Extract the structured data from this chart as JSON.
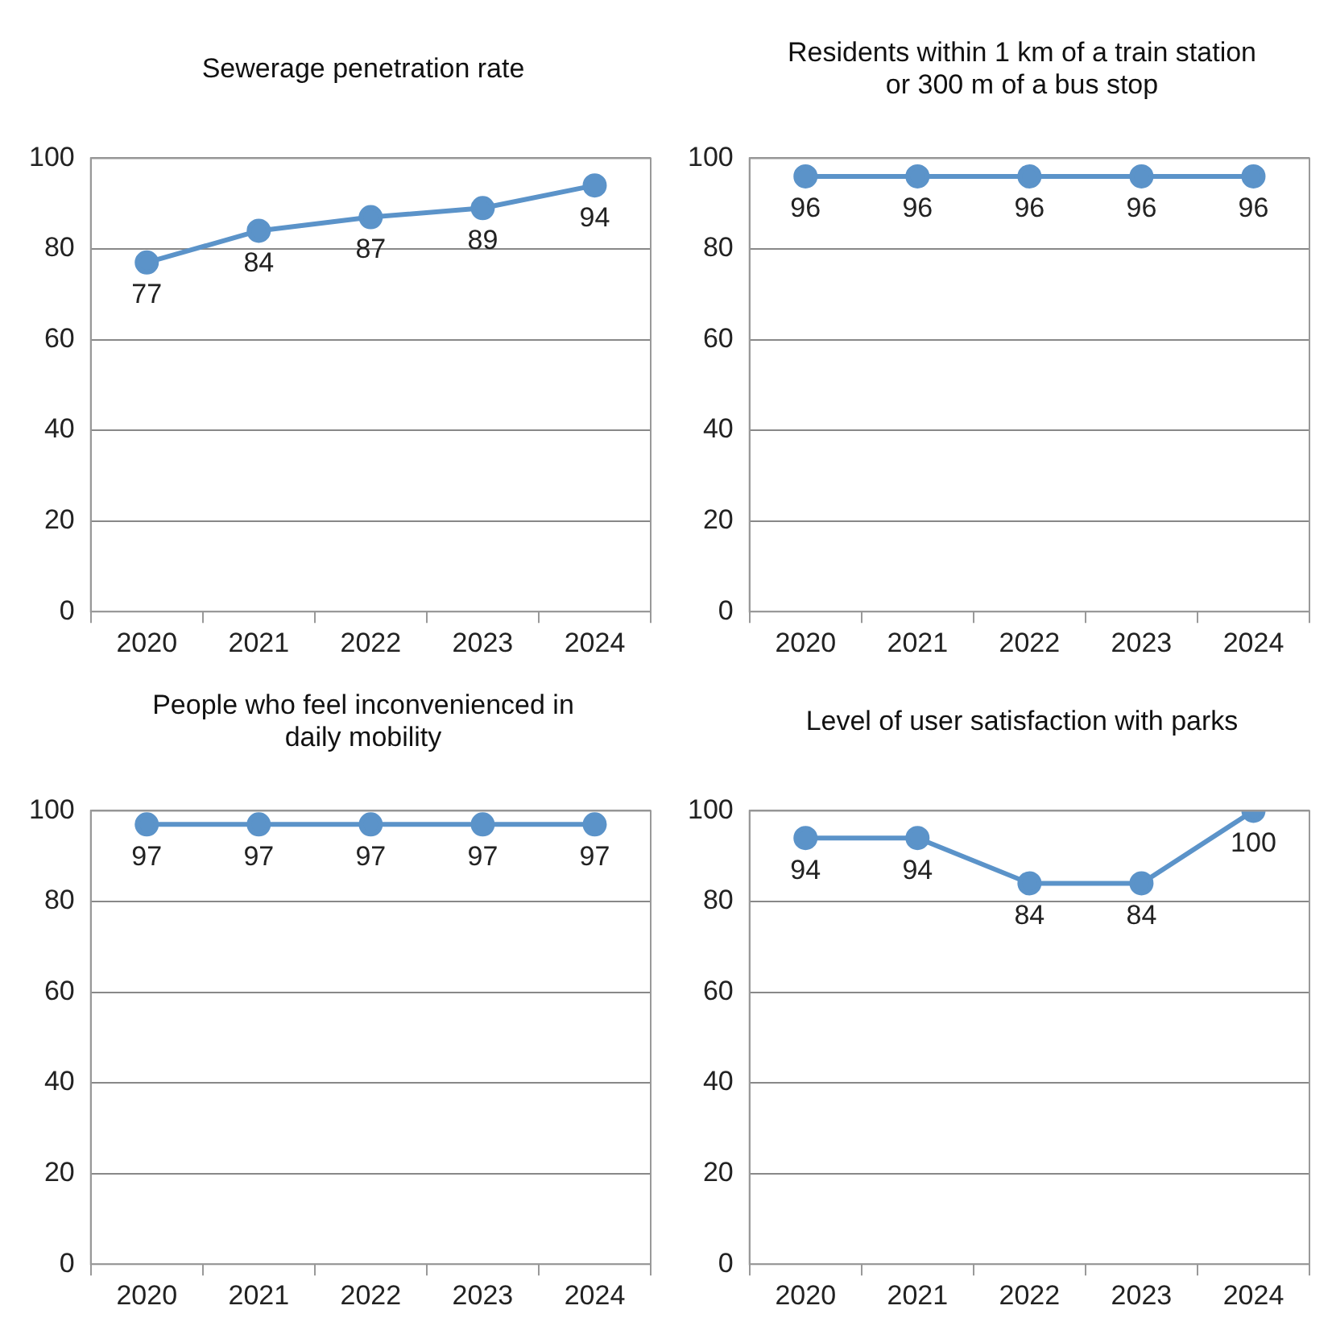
{
  "chart_data": [
    {
      "type": "line",
      "title": "Sewerage penetration rate",
      "categories": [
        "2020",
        "2021",
        "2022",
        "2023",
        "2024"
      ],
      "series": [
        {
          "color": "#5b93c9",
          "values": [
            77,
            84,
            87,
            89,
            94
          ]
        }
      ],
      "ylim": [
        0,
        100
      ],
      "yticks": [
        0,
        20,
        40,
        60,
        80,
        100
      ],
      "grid": "y",
      "marker": "circle",
      "line_style": "solid",
      "data_labels": true,
      "legend": false
    },
    {
      "type": "line",
      "title": "Residents within 1 km of a train station or 300 m of a bus stop",
      "categories": [
        "2020",
        "2021",
        "2022",
        "2023",
        "2024"
      ],
      "series": [
        {
          "color": "#5b93c9",
          "values": [
            96,
            96,
            96,
            96,
            96
          ]
        }
      ],
      "ylim": [
        0,
        100
      ],
      "yticks": [
        0,
        20,
        40,
        60,
        80,
        100
      ],
      "grid": "y",
      "marker": "circle",
      "line_style": "solid",
      "data_labels": true,
      "legend": false
    },
    {
      "type": "line",
      "title": "People who feel inconvenienced in daily mobility",
      "categories": [
        "2020",
        "2021",
        "2022",
        "2023",
        "2024"
      ],
      "series": [
        {
          "color": "#5b93c9",
          "values": [
            97,
            97,
            97,
            97,
            97
          ]
        }
      ],
      "ylim": [
        0,
        100
      ],
      "yticks": [
        0,
        20,
        40,
        60,
        80,
        100
      ],
      "grid": "y",
      "marker": "circle",
      "line_style": "solid",
      "data_labels": true,
      "legend": false
    },
    {
      "type": "line",
      "title": "Level of user satisfaction with parks",
      "categories": [
        "2020",
        "2021",
        "2022",
        "2023",
        "2024"
      ],
      "series": [
        {
          "color": "#5b93c9",
          "values": [
            94,
            94,
            84,
            84,
            100
          ]
        }
      ],
      "ylim": [
        0,
        100
      ],
      "yticks": [
        0,
        20,
        40,
        60,
        80,
        100
      ],
      "grid": "y",
      "marker": "circle",
      "line_style": "solid",
      "data_labels": true,
      "legend": false
    }
  ]
}
